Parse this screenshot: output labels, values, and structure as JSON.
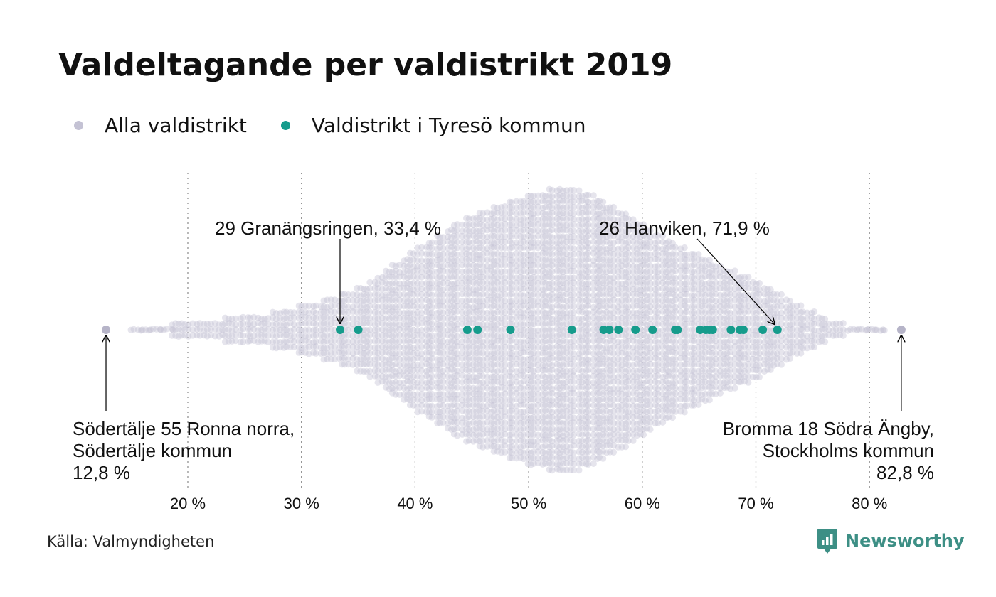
{
  "title": "Valdeltagande per valdistrikt 2019",
  "legend": [
    {
      "label": "Alla valdistrikt",
      "color": "#c4c2d4"
    },
    {
      "label": "Valdistrikt i Tyresö kommun",
      "color": "#169c8c"
    }
  ],
  "source": "Källa: Valmyndigheten",
  "brand": {
    "name": "Newsworthy",
    "color": "#3d8f85"
  },
  "chart_data": {
    "type": "scatter",
    "subtype": "beeswarm",
    "x_unit": "%",
    "xlim": [
      11,
      84
    ],
    "ticks": [
      {
        "value": 20,
        "label": "20 %"
      },
      {
        "value": 30,
        "label": "30 %"
      },
      {
        "value": 40,
        "label": "40 %"
      },
      {
        "value": 50,
        "label": "50 %"
      },
      {
        "value": 60,
        "label": "60 %"
      },
      {
        "value": 70,
        "label": "70 %"
      },
      {
        "value": 80,
        "label": "80 %"
      }
    ],
    "grid": "vertical dotted",
    "series": [
      {
        "name": "Alla valdistrikt",
        "color": "#c4c2d4",
        "distribution": "dense swarm of all districts, approx. 12.8–82.8 %, peak density near 54 %",
        "values": [
          12.8,
          82.8
        ]
      },
      {
        "name": "Valdistrikt i Tyresö kommun",
        "color": "#169c8c",
        "values": [
          33.4,
          35.0,
          44.6,
          45.5,
          48.4,
          53.8,
          56.6,
          57.1,
          57.9,
          59.4,
          60.9,
          62.9,
          63.1,
          65.1,
          65.6,
          65.9,
          66.2,
          67.8,
          68.6,
          68.9,
          70.6,
          71.9
        ]
      }
    ],
    "annotations": [
      {
        "lines": [
          "29 Granängsringen, 33,4 %"
        ],
        "value": 33.4
      },
      {
        "lines": [
          "26 Hanviken, 71,9 %"
        ],
        "value": 71.9
      },
      {
        "lines": [
          "Södertälje 55 Ronna norra,",
          "Södertälje kommun",
          "12,8 %"
        ],
        "value": 12.8
      },
      {
        "lines": [
          "Bromma 18 Södra Ängby,",
          "Stockholms kommun",
          "82,8 %"
        ],
        "value": 82.8
      }
    ]
  }
}
